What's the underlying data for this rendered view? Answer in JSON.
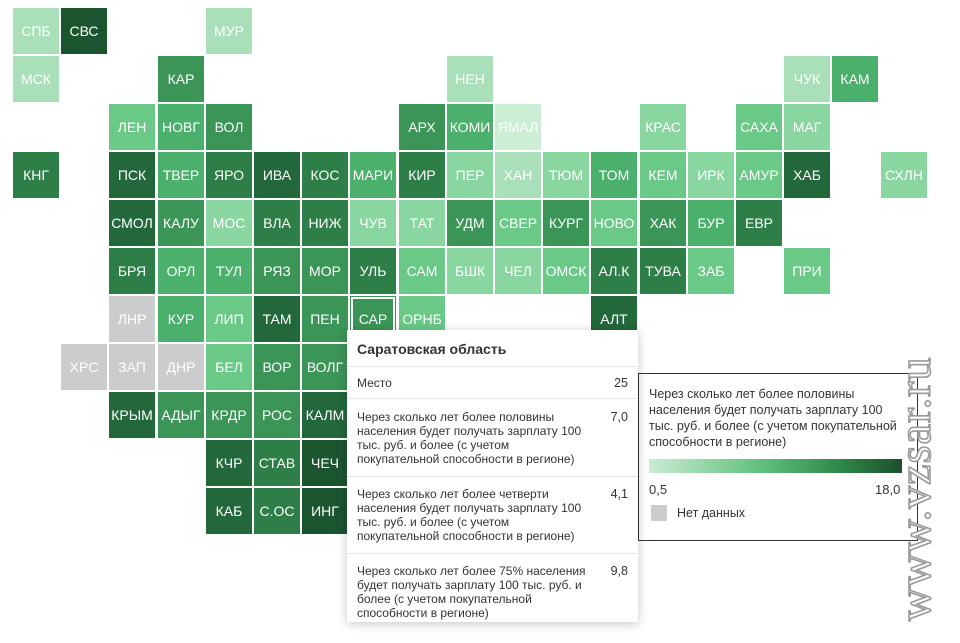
{
  "colors": {
    "c1": "#cbeed5",
    "c2": "#a9e0b9",
    "c3": "#8ad6a1",
    "c4": "#6ac987",
    "c5": "#4bb06b",
    "c6": "#3b9556",
    "c7": "#2e7e47",
    "c8": "#23683a",
    "c9": "#1b5530",
    "nodata": "#cccccc"
  },
  "regions": [
    {
      "label": "СПБ",
      "col": 0,
      "row": 0,
      "c": "c2"
    },
    {
      "label": "СВС",
      "col": 1,
      "row": 0,
      "c": "c9"
    },
    {
      "label": "МУР",
      "col": 4,
      "row": 0,
      "c": "c2"
    },
    {
      "label": "МСК",
      "col": 0,
      "row": 1,
      "c": "c2"
    },
    {
      "label": "КАР",
      "col": 3,
      "row": 1,
      "c": "c6"
    },
    {
      "label": "НЕН",
      "col": 9,
      "row": 1,
      "c": "c2"
    },
    {
      "label": "ЧУК",
      "col": 16,
      "row": 1,
      "c": "c2"
    },
    {
      "label": "КАМ",
      "col": 17,
      "row": 1,
      "c": "c5"
    },
    {
      "label": "ЛЕН",
      "col": 2,
      "row": 2,
      "c": "c4"
    },
    {
      "label": "НОВГ",
      "col": 3,
      "row": 2,
      "c": "c5"
    },
    {
      "label": "ВОЛ",
      "col": 4,
      "row": 2,
      "c": "c6"
    },
    {
      "label": "АРХ",
      "col": 8,
      "row": 2,
      "c": "c6"
    },
    {
      "label": "КОМИ",
      "col": 9,
      "row": 2,
      "c": "c5"
    },
    {
      "label": "ЯМАЛ",
      "col": 10,
      "row": 2,
      "c": "c1"
    },
    {
      "label": "КРАС",
      "col": 13,
      "row": 2,
      "c": "c3"
    },
    {
      "label": "САХА",
      "col": 15,
      "row": 2,
      "c": "c4"
    },
    {
      "label": "МАГ",
      "col": 16,
      "row": 2,
      "c": "c3"
    },
    {
      "label": "КНГ",
      "col": 0,
      "row": 3,
      "c": "c7"
    },
    {
      "label": "ПСК",
      "col": 2,
      "row": 3,
      "c": "c8"
    },
    {
      "label": "ТВЕР",
      "col": 3,
      "row": 3,
      "c": "c5"
    },
    {
      "label": "ЯРО",
      "col": 4,
      "row": 3,
      "c": "c7"
    },
    {
      "label": "ИВА",
      "col": 5,
      "row": 3,
      "c": "c8"
    },
    {
      "label": "КОС",
      "col": 6,
      "row": 3,
      "c": "c7"
    },
    {
      "label": "МАРИ",
      "col": 7,
      "row": 3,
      "c": "c5"
    },
    {
      "label": "КИР",
      "col": 8,
      "row": 3,
      "c": "c7"
    },
    {
      "label": "ПЕР",
      "col": 9,
      "row": 3,
      "c": "c3"
    },
    {
      "label": "ХАН",
      "col": 10,
      "row": 3,
      "c": "c2"
    },
    {
      "label": "ТЮМ",
      "col": 11,
      "row": 3,
      "c": "c3"
    },
    {
      "label": "ТОМ",
      "col": 12,
      "row": 3,
      "c": "c5"
    },
    {
      "label": "КЕМ",
      "col": 13,
      "row": 3,
      "c": "c4"
    },
    {
      "label": "ИРК",
      "col": 14,
      "row": 3,
      "c": "c3"
    },
    {
      "label": "АМУР",
      "col": 15,
      "row": 3,
      "c": "c4"
    },
    {
      "label": "ХАБ",
      "col": 16,
      "row": 3,
      "c": "c8"
    },
    {
      "label": "СХЛН",
      "col": 18,
      "row": 3,
      "c": "c3"
    },
    {
      "label": "СМОЛ",
      "col": 2,
      "row": 4,
      "c": "c8"
    },
    {
      "label": "КАЛУ",
      "col": 3,
      "row": 4,
      "c": "c6"
    },
    {
      "label": "МОС",
      "col": 4,
      "row": 4,
      "c": "c3"
    },
    {
      "label": "ВЛА",
      "col": 5,
      "row": 4,
      "c": "c7"
    },
    {
      "label": "НИЖ",
      "col": 6,
      "row": 4,
      "c": "c7"
    },
    {
      "label": "ЧУВ",
      "col": 7,
      "row": 4,
      "c": "c3"
    },
    {
      "label": "ТАТ",
      "col": 8,
      "row": 4,
      "c": "c3"
    },
    {
      "label": "УДМ",
      "col": 9,
      "row": 4,
      "c": "c6"
    },
    {
      "label": "СВЕР",
      "col": 10,
      "row": 4,
      "c": "c4"
    },
    {
      "label": "КУРГ",
      "col": 11,
      "row": 4,
      "c": "c6"
    },
    {
      "label": "НОВО",
      "col": 12,
      "row": 4,
      "c": "c4"
    },
    {
      "label": "ХАК",
      "col": 13,
      "row": 4,
      "c": "c6"
    },
    {
      "label": "БУР",
      "col": 14,
      "row": 4,
      "c": "c5"
    },
    {
      "label": "ЕВР",
      "col": 15,
      "row": 4,
      "c": "c7"
    },
    {
      "label": "БРЯ",
      "col": 2,
      "row": 5,
      "c": "c7"
    },
    {
      "label": "ОРЛ",
      "col": 3,
      "row": 5,
      "c": "c5"
    },
    {
      "label": "ТУЛ",
      "col": 4,
      "row": 5,
      "c": "c5"
    },
    {
      "label": "РЯЗ",
      "col": 5,
      "row": 5,
      "c": "c6"
    },
    {
      "label": "МОР",
      "col": 6,
      "row": 5,
      "c": "c6"
    },
    {
      "label": "УЛЬ",
      "col": 7,
      "row": 5,
      "c": "c7"
    },
    {
      "label": "САМ",
      "col": 8,
      "row": 5,
      "c": "c4"
    },
    {
      "label": "БШК",
      "col": 9,
      "row": 5,
      "c": "c3"
    },
    {
      "label": "ЧЕЛ",
      "col": 10,
      "row": 5,
      "c": "c3"
    },
    {
      "label": "ОМСК",
      "col": 11,
      "row": 5,
      "c": "c4"
    },
    {
      "label": "АЛ.К",
      "col": 12,
      "row": 5,
      "c": "c7"
    },
    {
      "label": "ТУВА",
      "col": 13,
      "row": 5,
      "c": "c7"
    },
    {
      "label": "ЗАБ",
      "col": 14,
      "row": 5,
      "c": "c4"
    },
    {
      "label": "ПРИ",
      "col": 16,
      "row": 5,
      "c": "c4"
    },
    {
      "label": "ЛНР",
      "col": 2,
      "row": 6,
      "c": "nodata"
    },
    {
      "label": "КУР",
      "col": 3,
      "row": 6,
      "c": "c5"
    },
    {
      "label": "ЛИП",
      "col": 4,
      "row": 6,
      "c": "c4"
    },
    {
      "label": "ТАМ",
      "col": 5,
      "row": 6,
      "c": "c8"
    },
    {
      "label": "ПЕН",
      "col": 6,
      "row": 6,
      "c": "c6"
    },
    {
      "label": "САР",
      "col": 7,
      "row": 6,
      "c": "c6",
      "selected": true
    },
    {
      "label": "ОРНБ",
      "col": 8,
      "row": 6,
      "c": "c4"
    },
    {
      "label": "АЛТ",
      "col": 12,
      "row": 6,
      "c": "c8"
    },
    {
      "label": "ХРС",
      "col": 1,
      "row": 7,
      "c": "nodata"
    },
    {
      "label": "ЗАП",
      "col": 2,
      "row": 7,
      "c": "nodata"
    },
    {
      "label": "ДНР",
      "col": 3,
      "row": 7,
      "c": "nodata"
    },
    {
      "label": "БЕЛ",
      "col": 4,
      "row": 7,
      "c": "c4"
    },
    {
      "label": "ВОР",
      "col": 5,
      "row": 7,
      "c": "c6"
    },
    {
      "label": "ВОЛГ",
      "col": 6,
      "row": 7,
      "c": "c6"
    },
    {
      "label": "КРЫМ",
      "col": 2,
      "row": 8,
      "c": "c8"
    },
    {
      "label": "АДЫГ",
      "col": 3,
      "row": 8,
      "c": "c6"
    },
    {
      "label": "КРДР",
      "col": 4,
      "row": 8,
      "c": "c6"
    },
    {
      "label": "РОС",
      "col": 5,
      "row": 8,
      "c": "c6"
    },
    {
      "label": "КАЛМ",
      "col": 6,
      "row": 8,
      "c": "c8"
    },
    {
      "label": "КЧР",
      "col": 4,
      "row": 9,
      "c": "c8"
    },
    {
      "label": "СТАВ",
      "col": 5,
      "row": 9,
      "c": "c7"
    },
    {
      "label": "ЧЕЧ",
      "col": 6,
      "row": 9,
      "c": "c9"
    },
    {
      "label": "КАБ",
      "col": 4,
      "row": 10,
      "c": "c8"
    },
    {
      "label": "С.ОС",
      "col": 5,
      "row": 10,
      "c": "c7"
    },
    {
      "label": "ИНГ",
      "col": 6,
      "row": 10,
      "c": "c9"
    }
  ],
  "tooltip": {
    "title": "Саратовская область",
    "rows": [
      {
        "label": "Место",
        "value": "25"
      },
      {
        "label": "Через сколько лет более половины населения будет получать зарплату 100 тыс. руб. и более (с учетом покупательной способности в регионе)",
        "value": "7,0"
      },
      {
        "label": "Через сколько лет более четверти населения будет получать зарплату 100 тыс. руб. и более (с учетом покупательной способности в регионе)",
        "value": "4,1"
      },
      {
        "label": "Через сколько лет более 75% населения будет получать зарплату 100 тыс. руб. и более (с учетом покупательной способности в регионе)",
        "value": "9,8"
      }
    ]
  },
  "legend": {
    "title": "Через сколько лет более половины населения будет получать зарплату 100 тыс. руб. и более (с учетом покупательной способности в регионе)",
    "min": "0,5",
    "max": "18,0",
    "nodata_label": "Нет данных"
  },
  "watermark": "www.vzsar.ru"
}
